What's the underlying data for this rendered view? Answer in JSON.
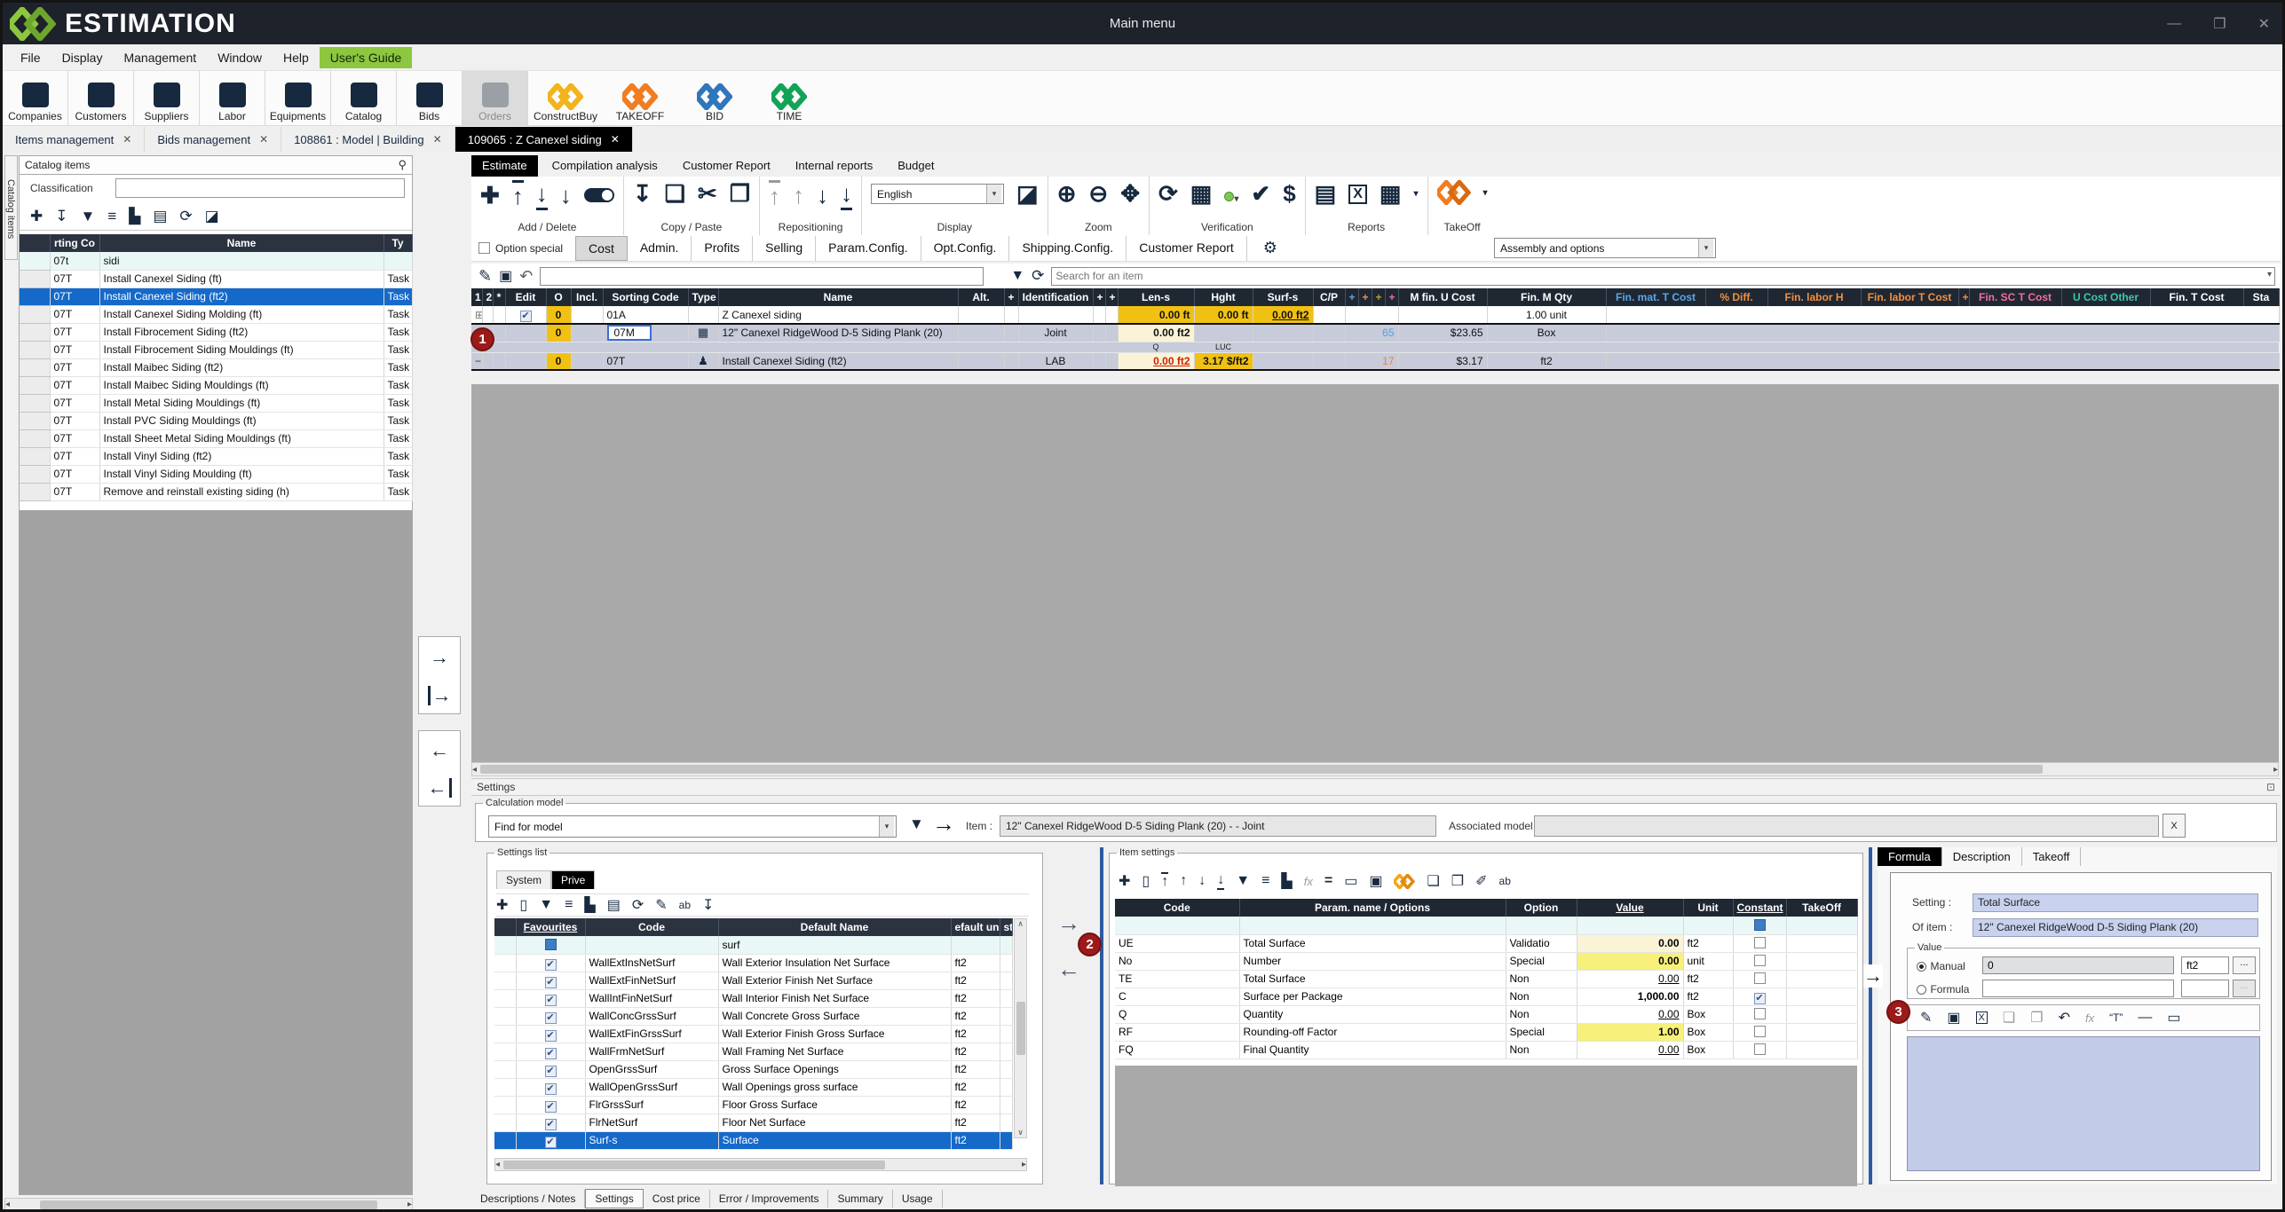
{
  "window": {
    "logo_text": "ESTIMATION",
    "title": "Main menu",
    "controls": {
      "minimize": "—",
      "restore": "❐",
      "close": "✕"
    }
  },
  "menu": {
    "items": [
      "File",
      "Display",
      "Management",
      "Window",
      "Help",
      "User's Guide"
    ]
  },
  "appbar": {
    "buttons": [
      {
        "label": "Companies",
        "icon": "briefcase-icon"
      },
      {
        "label": "Customers",
        "icon": "person-icon"
      },
      {
        "label": "Suppliers",
        "icon": "truck-icon"
      },
      {
        "label": "Labor",
        "icon": "worker-icon"
      },
      {
        "label": "Equipments",
        "icon": "excavator-icon"
      },
      {
        "label": "Catalog",
        "icon": "book-icon"
      },
      {
        "label": "Bids",
        "icon": "server-icon"
      },
      {
        "label": "Orders",
        "icon": "invoice-icon",
        "disabled": true
      }
    ],
    "brand_buttons": [
      {
        "label": "ConstructBuy",
        "color": "#f2b31c"
      },
      {
        "label": "TAKEOFF",
        "color": "#f07d22"
      },
      {
        "label": "BID",
        "color": "#2f76bc"
      },
      {
        "label": "TIME",
        "color": "#12a356"
      }
    ]
  },
  "doc_tabs": [
    {
      "label": "Items management"
    },
    {
      "label": "Bids management"
    },
    {
      "label": "108861 : Model | Building"
    },
    {
      "label": "109065 : Z Canexel siding",
      "active": true
    }
  ],
  "catalog": {
    "vertical_tab": "Catalog items",
    "title": "Catalog items",
    "classification_label": "Classification",
    "table": {
      "headers": [
        "",
        "rting Co",
        "Name",
        "Ty"
      ],
      "filter_row": {
        "code": "07t",
        "name": "sidi",
        "type": ""
      },
      "rows": [
        {
          "code": "07T",
          "name": "Install Canexel Siding (ft)",
          "type": "Task"
        },
        {
          "code": "07T",
          "name": "Install Canexel Siding (ft2)",
          "type": "Task",
          "selected": true
        },
        {
          "code": "07T",
          "name": "Install Canexel Siding Molding (ft)",
          "type": "Task"
        },
        {
          "code": "07T",
          "name": "Install Fibrocement Siding (ft2)",
          "type": "Task"
        },
        {
          "code": "07T",
          "name": "Install Fibrocement Siding Mouldings (ft)",
          "type": "Task"
        },
        {
          "code": "07T",
          "name": "Install Maibec Siding (ft2)",
          "type": "Task"
        },
        {
          "code": "07T",
          "name": "Install Maibec Siding Mouldings (ft)",
          "type": "Task"
        },
        {
          "code": "07T",
          "name": "Install Metal Siding Mouldings (ft)",
          "type": "Task"
        },
        {
          "code": "07T",
          "name": "Install PVC Siding Mouldings (ft)",
          "type": "Task"
        },
        {
          "code": "07T",
          "name": "Install Sheet Metal Siding Mouldings (ft)",
          "type": "Task"
        },
        {
          "code": "07T",
          "name": "Install Vinyl Siding (ft2)",
          "type": "Task"
        },
        {
          "code": "07T",
          "name": "Install Vinyl Siding Moulding (ft)",
          "type": "Task"
        },
        {
          "code": "07T",
          "name": "Remove and reinstall existing siding (h)",
          "type": "Task"
        }
      ]
    }
  },
  "estimate": {
    "tabs": [
      {
        "label": "Estimate",
        "active": true
      },
      {
        "label": "Compilation analysis"
      },
      {
        "label": "Customer Report"
      },
      {
        "label": "Internal reports"
      },
      {
        "label": "Budget"
      }
    ],
    "ribbon": {
      "groups": [
        "Add / Delete",
        "Copy / Paste",
        "Repositioning",
        "Display",
        "Zoom",
        "Verification",
        "Reports",
        "TakeOff"
      ],
      "language": "English"
    },
    "subrow": {
      "option_special": "Option special",
      "tabs": [
        {
          "label": "Cost",
          "active": true
        },
        {
          "label": "Admin."
        },
        {
          "label": "Profits"
        },
        {
          "label": "Selling"
        },
        {
          "label": "Param.Config."
        },
        {
          "label": "Opt.Config."
        },
        {
          "label": "Shipping.Config."
        },
        {
          "label": "Customer Report"
        }
      ],
      "assembly_dropdown": "Assembly and options"
    },
    "editrow": {
      "search_placeholder": "Search for an item"
    },
    "grid": {
      "headers": [
        {
          "t": "1"
        },
        {
          "t": "2"
        },
        {
          "t": "*"
        },
        {
          "t": "Edit"
        },
        {
          "t": "O"
        },
        {
          "t": "Incl."
        },
        {
          "t": "Sorting Code"
        },
        {
          "t": "Type"
        },
        {
          "t": "Name"
        },
        {
          "t": "Alt."
        },
        {
          "t": "+"
        },
        {
          "t": "Identification"
        },
        {
          "t": "+"
        },
        {
          "t": "+"
        },
        {
          "t": "Len-s"
        },
        {
          "t": "Hght"
        },
        {
          "t": "Surf-s"
        },
        {
          "t": "C/P"
        },
        {
          "t": "+",
          "c": "hb"
        },
        {
          "t": "+",
          "c": "ho"
        },
        {
          "t": "+",
          "c": "hol"
        },
        {
          "t": "+",
          "c": "hp"
        },
        {
          "t": "M fin. U Cost"
        },
        {
          "t": "Fin. M Qty"
        },
        {
          "t": "Fin. mat. T Cost",
          "c": "hb"
        },
        {
          "t": "% Diff.",
          "c": "ho"
        },
        {
          "t": "Fin. labor H",
          "c": "ho"
        },
        {
          "t": "Fin. labor T Cost",
          "c": "ho"
        },
        {
          "t": "+",
          "c": "ho"
        },
        {
          "t": "Fin. SC T Cost",
          "c": "hp"
        },
        {
          "t": "U Cost Other",
          "c": "ht"
        },
        {
          "t": "Fin. T Cost"
        },
        {
          "t": "Sta"
        }
      ],
      "rows": {
        "row1": {
          "o": "0",
          "sorting_code": "01A",
          "name": "Z Canexel siding",
          "len_s": "0.00 ft",
          "hght": "0.00 ft",
          "surf_s": "0.00 ft2",
          "fin_m_qty": "1.00 unit"
        },
        "row2": {
          "o": "0",
          "sorting_code": "07M",
          "name": "12\" Canexel RidgeWood D-5 Siding Plank (20)",
          "identification": "Joint",
          "len_s": "0.00 ft2",
          "cp_extra": "65",
          "m_fin_u_cost": "$23.65",
          "fin_m_qty": "Box"
        },
        "mini": {
          "q": "Q",
          "luc": "LUC"
        },
        "row3": {
          "o": "0",
          "sorting_code": "07T",
          "name": "Install Canexel Siding (ft2)",
          "identification": "LAB",
          "len_s": "0.00 ft2",
          "hght": "3.17 $/ft2",
          "cp_extra": "17",
          "m_fin_u_cost": "$3.17",
          "fin_m_qty": "ft2"
        }
      }
    }
  },
  "settings_section": {
    "title": "Settings",
    "calc_model": {
      "legend": "Calculation model",
      "find_value": "Find for model",
      "item_label": "Item :",
      "item_value": "12\" Canexel RidgeWood D-5 Siding Plank (20) -  - Joint",
      "assoc_label": "Associated model",
      "clear_button": "X"
    },
    "settings_list": {
      "legend": "Settings list",
      "tabs": [
        {
          "label": "System"
        },
        {
          "label": "Prive",
          "active": true
        }
      ],
      "headers": [
        "",
        "Favourites",
        "Code",
        "Default Name",
        "efault un",
        "st"
      ],
      "filter_row": {
        "name": "surf"
      },
      "rows": [
        {
          "code": "WallExtInsNetSurf",
          "name": "Wall Exterior Insulation Net Surface",
          "unit": "ft2"
        },
        {
          "code": "WallExtFinNetSurf",
          "name": "Wall Exterior Finish Net Surface",
          "unit": "ft2"
        },
        {
          "code": "WallIntFinNetSurf",
          "name": "Wall Interior Finish Net Surface",
          "unit": "ft2"
        },
        {
          "code": "WallConcGrssSurf",
          "name": "Wall Concrete Gross Surface",
          "unit": "ft2"
        },
        {
          "code": "WallExtFinGrssSurf",
          "name": "Wall Exterior Finish Gross Surface",
          "unit": "ft2"
        },
        {
          "code": "WallFrmNetSurf",
          "name": "Wall Framing Net Surface",
          "unit": "ft2"
        },
        {
          "code": "OpenGrssSurf",
          "name": "Gross Surface Openings",
          "unit": "ft2"
        },
        {
          "code": "WallOpenGrssSurf",
          "name": "Wall Openings gross surface",
          "unit": "ft2"
        },
        {
          "code": "FlrGrssSurf",
          "name": "Floor Gross Surface",
          "unit": "ft2"
        },
        {
          "code": "FlrNetSurf",
          "name": "Floor Net Surface",
          "unit": "ft2"
        },
        {
          "code": "Surf-s",
          "name": "Surface",
          "unit": "ft2",
          "selected": true
        }
      ]
    },
    "item_settings": {
      "legend": "Item settings",
      "headers": [
        "Code",
        "Param. name / Options",
        "Option",
        "Value",
        "Unit",
        "Constant",
        "TakeOff"
      ],
      "rows": [
        {
          "code": "UE",
          "param": "Total Surface",
          "option": "Validatio",
          "value": "0.00",
          "unit": "ft2",
          "style": "valC"
        },
        {
          "code": "No",
          "param": "Number",
          "option": "Special",
          "value": "0.00",
          "unit": "unit",
          "style": "valY"
        },
        {
          "code": "TE",
          "param": "Total Surface",
          "option": "Non",
          "value": "0.00",
          "unit": "ft2",
          "style": "valL"
        },
        {
          "code": "C",
          "param": "Surface per Package",
          "option": "Non",
          "value": "1,000.00",
          "unit": "ft2",
          "style": "valB",
          "constant": true
        },
        {
          "code": "Q",
          "param": "Quantity",
          "option": "Non",
          "value": "0.00",
          "unit": "Box",
          "style": "valL"
        },
        {
          "code": "RF",
          "param": "Rounding-off Factor",
          "option": "Special",
          "value": "1.00",
          "unit": "Box",
          "style": "valY"
        },
        {
          "code": "FQ",
          "param": "Final Quantity",
          "option": "Non",
          "value": "0.00",
          "unit": "Box",
          "style": "valL"
        }
      ]
    },
    "formula": {
      "tabs": [
        {
          "label": "Formula",
          "active": true
        },
        {
          "label": "Description"
        },
        {
          "label": "Takeoff"
        }
      ],
      "setting_label": "Setting :",
      "setting_value": "Total Surface",
      "of_item_label": "Of item :",
      "of_item_value": "12\" Canexel RidgeWood D-5 Siding Plank (20)",
      "value_legend": "Value",
      "manual_label": "Manual",
      "manual_value": "0",
      "manual_unit": "ft2",
      "formula_label": "Formula",
      "ellipsis": "..."
    },
    "bottom_tabs": [
      {
        "label": "Descriptions / Notes"
      },
      {
        "label": "Settings",
        "active": true
      },
      {
        "label": "Cost price"
      },
      {
        "label": "Error / Improvements"
      },
      {
        "label": "Summary"
      },
      {
        "label": "Usage"
      }
    ]
  },
  "annotations": {
    "badge1": "1",
    "badge2": "2",
    "badge3": "3"
  },
  "colors": {
    "selection": "#1569c9",
    "header_dark": "#1f2733",
    "yellow_cell": "#f0c113",
    "cream_cell": "#fbf3d8",
    "brand_green": "#8dc63f",
    "badge_red": "#9b1b1b",
    "titlebar": "#1d222b"
  }
}
